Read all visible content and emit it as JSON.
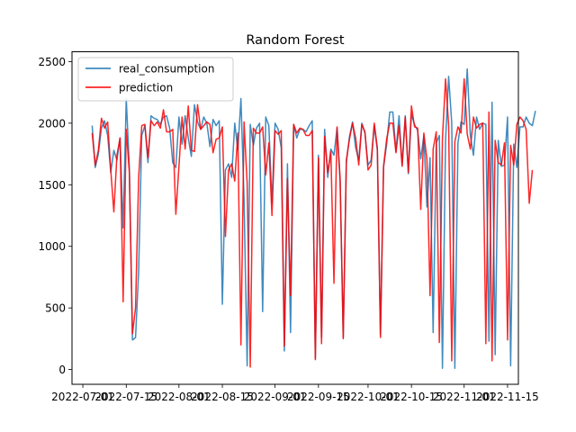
{
  "chart_data": {
    "type": "line",
    "title": "Random Forest",
    "xlabel": "",
    "ylabel": "",
    "x_ticks": [
      "2022-07-01",
      "2022-07-15",
      "2022-08-01",
      "2022-08-15",
      "2022-09-01",
      "2022-09-15",
      "2022-10-01",
      "2022-10-15",
      "2022-11-01",
      "2022-11-15"
    ],
    "y_ticks": [
      0,
      500,
      1000,
      1500,
      2000,
      2500
    ],
    "ylim": [
      -120,
      2580
    ],
    "grid": false,
    "legend_position": "top-left",
    "x_start": "2022-07-04",
    "x_step_days": 1,
    "series": [
      {
        "name": "real_consumption",
        "color": "#1f77b4",
        "values": [
          1980,
          1640,
          1750,
          1960,
          2020,
          1900,
          1600,
          1780,
          1700,
          1880,
          1150,
          2200,
          1640,
          240,
          260,
          800,
          1900,
          1980,
          1680,
          2060,
          2040,
          2030,
          1990,
          2050,
          2060,
          1960,
          1680,
          1640,
          2050,
          1830,
          2060,
          1880,
          1730,
          2150,
          2010,
          1950,
          2050,
          2000,
          1810,
          2030,
          1980,
          2020,
          530,
          1620,
          1670,
          1560,
          2000,
          1780,
          2200,
          1380,
          30,
          1990,
          1820,
          1960,
          2000,
          470,
          2050,
          1980,
          1350,
          2000,
          1950,
          1800,
          150,
          1670,
          300,
          1990,
          1880,
          1950,
          1950,
          1930,
          1980,
          2020,
          90,
          1740,
          260,
          1950,
          1560,
          1790,
          1740,
          1960,
          1520,
          260,
          1680,
          1890,
          2010,
          1800,
          1700,
          2000,
          1920,
          1660,
          1700,
          1980,
          1780,
          280,
          1640,
          1830,
          2090,
          2090,
          1770,
          2060,
          1660,
          2060,
          1590,
          2070,
          1990,
          1940,
          1710,
          1900,
          1320,
          1720,
          300,
          1840,
          1900,
          10,
          1860,
          2380,
          2000,
          10,
          1840,
          2010,
          1990,
          2440,
          1900,
          1740,
          2050,
          1950,
          2000,
          1990,
          230,
          2170,
          120,
          1860,
          1650,
          1660,
          2050,
          30,
          1830,
          1640,
          1970,
          1970,
          2050,
          2000,
          1980,
          2100
        ]
      },
      {
        "name": "prediction",
        "color": "#ff0000",
        "values": [
          1920,
          1660,
          1780,
          2040,
          1960,
          2010,
          1620,
          1280,
          1740,
          1880,
          550,
          1950,
          1600,
          290,
          500,
          1560,
          1980,
          1990,
          1720,
          2020,
          1980,
          2010,
          1960,
          2110,
          1930,
          1930,
          1950,
          1260,
          1650,
          2050,
          1790,
          2140,
          1780,
          1770,
          2150,
          1950,
          1980,
          2010,
          1990,
          1760,
          1870,
          1880,
          1970,
          1080,
          1620,
          1670,
          1530,
          1920,
          200,
          2010,
          1510,
          20,
          1960,
          1920,
          1920,
          1970,
          1580,
          1840,
          1250,
          1940,
          1910,
          1940,
          190,
          1550,
          600,
          1990,
          1920,
          1960,
          1950,
          1900,
          1900,
          1940,
          80,
          1720,
          210,
          1890,
          1600,
          1770,
          700,
          1970,
          1550,
          250,
          1700,
          1870,
          2000,
          1880,
          1660,
          1990,
          1930,
          1620,
          1660,
          2000,
          1800,
          260,
          1650,
          1870,
          2000,
          2000,
          1760,
          1980,
          1650,
          2050,
          1600,
          2140,
          1970,
          1960,
          1300,
          1920,
          1700,
          600,
          1790,
          1930,
          220,
          1880,
          2360,
          1980,
          70,
          1850,
          1970,
          1920,
          2360,
          1910,
          1790,
          2050,
          1960,
          1990,
          2000,
          210,
          2090,
          70,
          1860,
          1680,
          1660,
          1840,
          240,
          1820,
          1660,
          1990,
          2050,
          2020,
          1950,
          1350,
          1620
        ]
      }
    ]
  }
}
